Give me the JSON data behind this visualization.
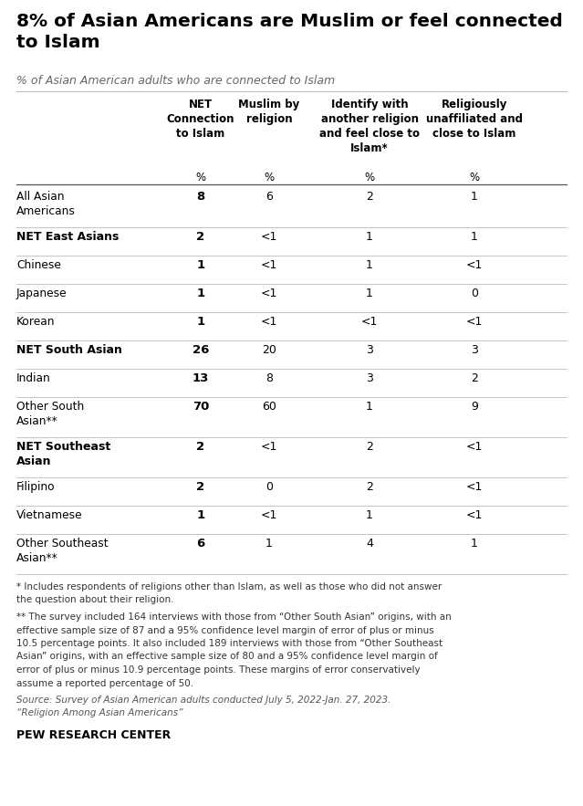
{
  "title": "8% of Asian Americans are Muslim or feel connected\nto Islam",
  "subtitle": "% of Asian American adults who are connected to Islam",
  "col_headers": [
    "NET\nConnection\nto Islam",
    "Muslim by\nreligion",
    "Identify with\nanother religion\nand feel close to\nIslam*",
    "Religiously\nunaffiliated and\nclose to Islam"
  ],
  "col_unit": [
    "%",
    "%",
    "%",
    "%"
  ],
  "rows": [
    {
      "label": "All Asian\nAmericans",
      "bold": false,
      "values": [
        "8",
        "6",
        "2",
        "1"
      ]
    },
    {
      "label": "NET East Asians",
      "bold": true,
      "values": [
        "2",
        "<1",
        "1",
        "1"
      ]
    },
    {
      "label": "Chinese",
      "bold": false,
      "values": [
        "1",
        "<1",
        "1",
        "<1"
      ]
    },
    {
      "label": "Japanese",
      "bold": false,
      "values": [
        "1",
        "<1",
        "1",
        "0"
      ]
    },
    {
      "label": "Korean",
      "bold": false,
      "values": [
        "1",
        "<1",
        "<1",
        "<1"
      ]
    },
    {
      "label": "NET South Asian",
      "bold": true,
      "values": [
        "26",
        "20",
        "3",
        "3"
      ]
    },
    {
      "label": "Indian",
      "bold": false,
      "values": [
        "13",
        "8",
        "3",
        "2"
      ]
    },
    {
      "label": "Other South\nAsian**",
      "bold": false,
      "values": [
        "70",
        "60",
        "1",
        "9"
      ]
    },
    {
      "label": "NET Southeast\nAsian",
      "bold": true,
      "values": [
        "2",
        "<1",
        "2",
        "<1"
      ]
    },
    {
      "label": "Filipino",
      "bold": false,
      "values": [
        "2",
        "0",
        "2",
        "<1"
      ]
    },
    {
      "label": "Vietnamese",
      "bold": false,
      "values": [
        "1",
        "<1",
        "1",
        "<1"
      ]
    },
    {
      "label": "Other Southeast\nAsian**",
      "bold": false,
      "values": [
        "6",
        "1",
        "4",
        "1"
      ]
    }
  ],
  "footnote1": "* Includes respondents of religions other than Islam, as well as those who did not answer\nthe question about their religion.",
  "footnote2": "** The survey included 164 interviews with those from “Other South Asian” origins, with an\neffective sample size of 87 and a 95% confidence level margin of error of plus or minus\n10.5 percentage points. It also included 189 interviews with those from “Other Southeast\nAsian” origins, with an effective sample size of 80 and a 95% confidence level margin of\nerror of plus or minus 10.9 percentage points. These margins of error conservatively\nassume a reported percentage of 50.",
  "source": "Source: Survey of Asian American adults conducted July 5, 2022-Jan. 27, 2023.\n“Religion Among Asian Americans”",
  "brand": "PEW RESEARCH CENTER",
  "bg_color": "#ffffff",
  "title_color": "#000000",
  "subtitle_color": "#666666",
  "header_color": "#000000",
  "row_label_color": "#000000",
  "value_color": "#000000",
  "footnote_color": "#333333",
  "source_color": "#555555",
  "brand_color": "#000000",
  "line_color": "#bbbbbb",
  "header_line_color": "#555555"
}
